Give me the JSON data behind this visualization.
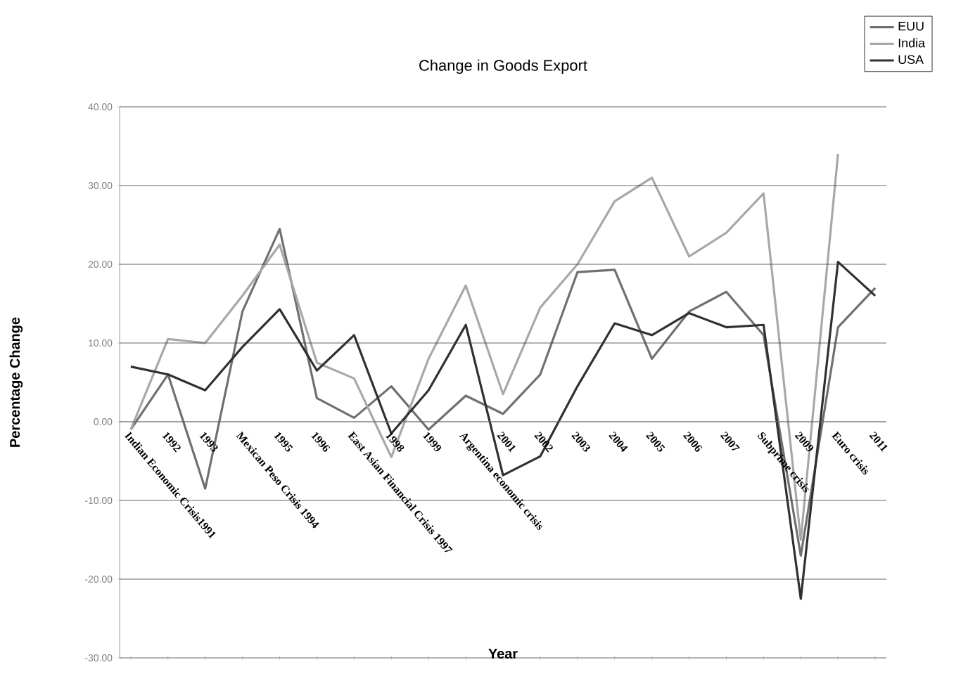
{
  "chart_data": {
    "type": "line",
    "title": "Change in Goods Export",
    "xlabel": "Year",
    "ylabel": "Percentage Change",
    "categories": [
      "Indian Economic Crisis1991",
      "1992",
      "1993",
      "Mexican Peso Crisis 1994",
      "1995",
      "1996",
      "East Asian Financial Crisis 1997",
      "1998",
      "1999",
      "Argentina economic crisis",
      "2001",
      "2002",
      "2003",
      "2004",
      "2005",
      "2006",
      "2007",
      "Subprime crisis",
      "2009",
      "Euro crisis",
      "2011"
    ],
    "series": [
      {
        "name": "EUU",
        "color": "#707070",
        "values": [
          -1,
          6,
          -8.5,
          14,
          24.5,
          3,
          0.5,
          4.5,
          -1,
          3.3,
          1,
          6,
          19,
          19.3,
          8,
          14,
          16.5,
          11,
          -17,
          12,
          17
        ]
      },
      {
        "name": "India",
        "color": "#a8a8a8",
        "values": [
          -1,
          10.5,
          10,
          16,
          22.5,
          7.5,
          5.5,
          -4.5,
          8,
          17.3,
          3.5,
          14.5,
          20,
          28,
          31,
          21,
          24,
          29,
          -15,
          34,
          null
        ]
      },
      {
        "name": "USA",
        "color": "#303030",
        "values": [
          7,
          6,
          4,
          9.5,
          14.3,
          6.5,
          11,
          -1.5,
          4,
          12.3,
          -6.8,
          -4.4,
          4.5,
          12.5,
          11,
          13.8,
          12,
          12.3,
          -22.5,
          20.3,
          16
        ]
      }
    ],
    "ylim": [
      -30,
      40
    ],
    "yticks": [
      {
        "value": -30,
        "label": "-30.00"
      },
      {
        "value": -20,
        "label": "-20.00"
      },
      {
        "value": -10,
        "label": "-10.00"
      },
      {
        "value": 0,
        "label": "0.00"
      },
      {
        "value": 10,
        "label": "10.00"
      },
      {
        "value": 20,
        "label": "20.00"
      },
      {
        "value": 30,
        "label": "30.00"
      },
      {
        "value": 40,
        "label": "40.00"
      }
    ],
    "grid": "y",
    "legend": "top right",
    "marker": "none",
    "line_style": "solid"
  }
}
